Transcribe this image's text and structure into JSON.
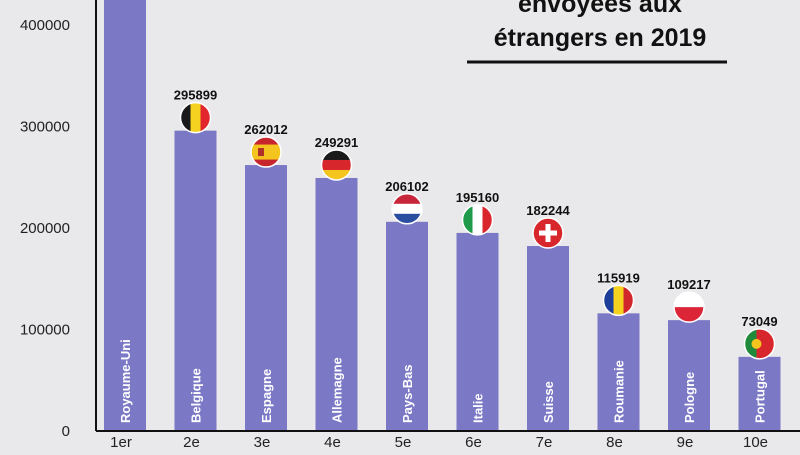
{
  "chart_data": {
    "type": "bar",
    "title_lines": [
      "envoyées aux",
      "étrangers en 2019"
    ],
    "categories": [
      "Royaume-Uni",
      "Belgique",
      "Espagne",
      "Allemagne",
      "Pays-Bas",
      "Italie",
      "Suisse",
      "Roumanie",
      "Pologne",
      "Portugal"
    ],
    "values": [
      430000,
      295899,
      262012,
      249291,
      206102,
      195160,
      182244,
      115919,
      109217,
      73049
    ],
    "value_labels": [
      "",
      "295899",
      "262012",
      "249291",
      "206102",
      "195160",
      "182244",
      "115919",
      "109217",
      "73049"
    ],
    "rank_labels": [
      "1er",
      "2e",
      "3e",
      "4e",
      "5e",
      "6e",
      "7e",
      "8e",
      "9e",
      "10e"
    ],
    "flags": [
      "",
      "flag-belgium-icon",
      "flag-spain-icon",
      "flag-germany-icon",
      "flag-netherlands-icon",
      "flag-italy-icon",
      "flag-switzerland-icon",
      "flag-romania-icon",
      "flag-poland-icon",
      "flag-portugal-icon"
    ],
    "yticks": [
      0,
      100000,
      200000,
      300000,
      400000
    ],
    "ylim": [
      0,
      440000
    ],
    "bar_color": "#7b78c6"
  }
}
